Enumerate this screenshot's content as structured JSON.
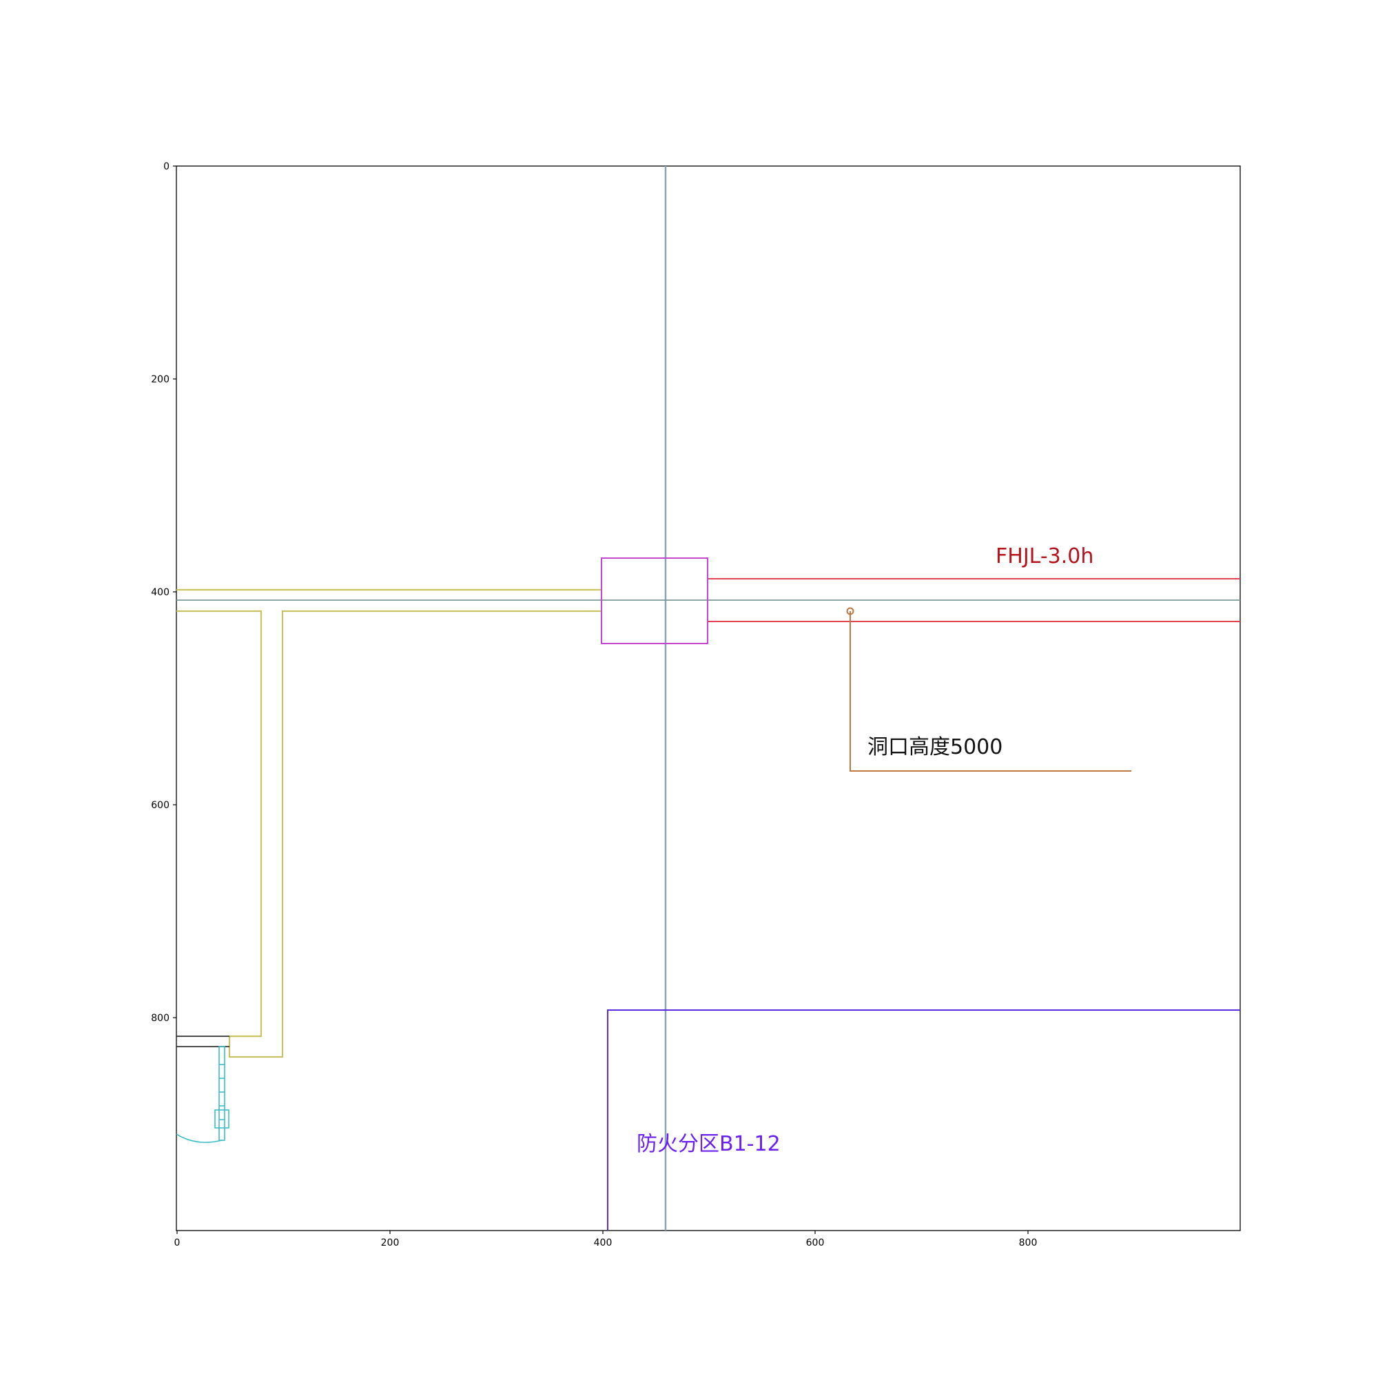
{
  "diagram": {
    "colors": {
      "axis": "#000000",
      "gridline": "#8aa4b4",
      "wall_yellow": "#c8c264",
      "fire_wall_red": "#e2454f",
      "opening_box": "#c347d4",
      "leader_orange": "#c0763f",
      "zone_boundary": "#5a2be2",
      "door_cyan": "#3bbdc6",
      "dark_line": "#333333",
      "label_red": "#b5121b",
      "label_black": "#111111",
      "label_purple": "#6a1ff0"
    },
    "axes": {
      "xlim": [
        0,
        1000
      ],
      "ylim": [
        1000,
        0
      ],
      "x_ticks": [
        "0",
        "200",
        "400",
        "600",
        "800"
      ],
      "y_ticks": [
        "0",
        "200",
        "400",
        "600",
        "800"
      ]
    },
    "labels": {
      "fire_wall": "FHJL-3.0h",
      "opening_height": "洞口高度5000",
      "fire_zone": "防火分区B1-12"
    }
  }
}
